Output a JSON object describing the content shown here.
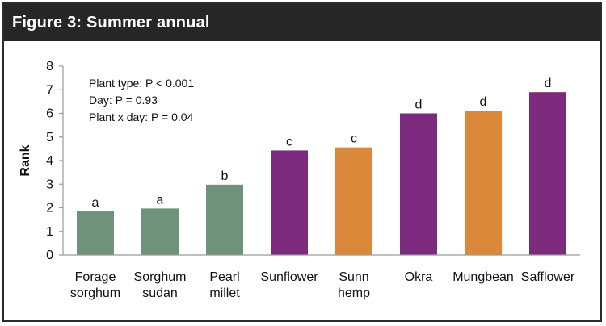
{
  "figure": {
    "title": "Figure 3: Summer annual"
  },
  "stats_annotation": [
    "Plant type: P < 0.001",
    "Day: P = 0.93",
    "Plant x day: P = 0.04"
  ],
  "colors": {
    "green": "#6e937a",
    "purple": "#7b2a7d",
    "orange": "#db883a",
    "title_bar": "#262626"
  },
  "chart_data": {
    "type": "bar",
    "title": "Figure 3: Summer annual",
    "xlabel": "",
    "ylabel": "Rank",
    "ylim": [
      0,
      8
    ],
    "yticks": [
      0,
      1,
      2,
      3,
      4,
      5,
      6,
      7,
      8
    ],
    "grid": false,
    "categories": [
      [
        "Forage",
        "sorghum"
      ],
      [
        "Sorghum",
        "sudan"
      ],
      [
        "Pearl",
        "millet"
      ],
      [
        "Sunflower"
      ],
      [
        "Sunn",
        "hemp"
      ],
      [
        "Okra"
      ],
      [
        "Mungbean"
      ],
      [
        "Safflower"
      ]
    ],
    "values": [
      1.85,
      1.97,
      2.98,
      4.43,
      4.56,
      6.0,
      6.12,
      6.9
    ],
    "bar_colors": [
      "green",
      "green",
      "green",
      "purple",
      "orange",
      "purple",
      "orange",
      "purple"
    ],
    "data_labels": [
      "a",
      "a",
      "b",
      "c",
      "c",
      "d",
      "d",
      "d"
    ]
  }
}
